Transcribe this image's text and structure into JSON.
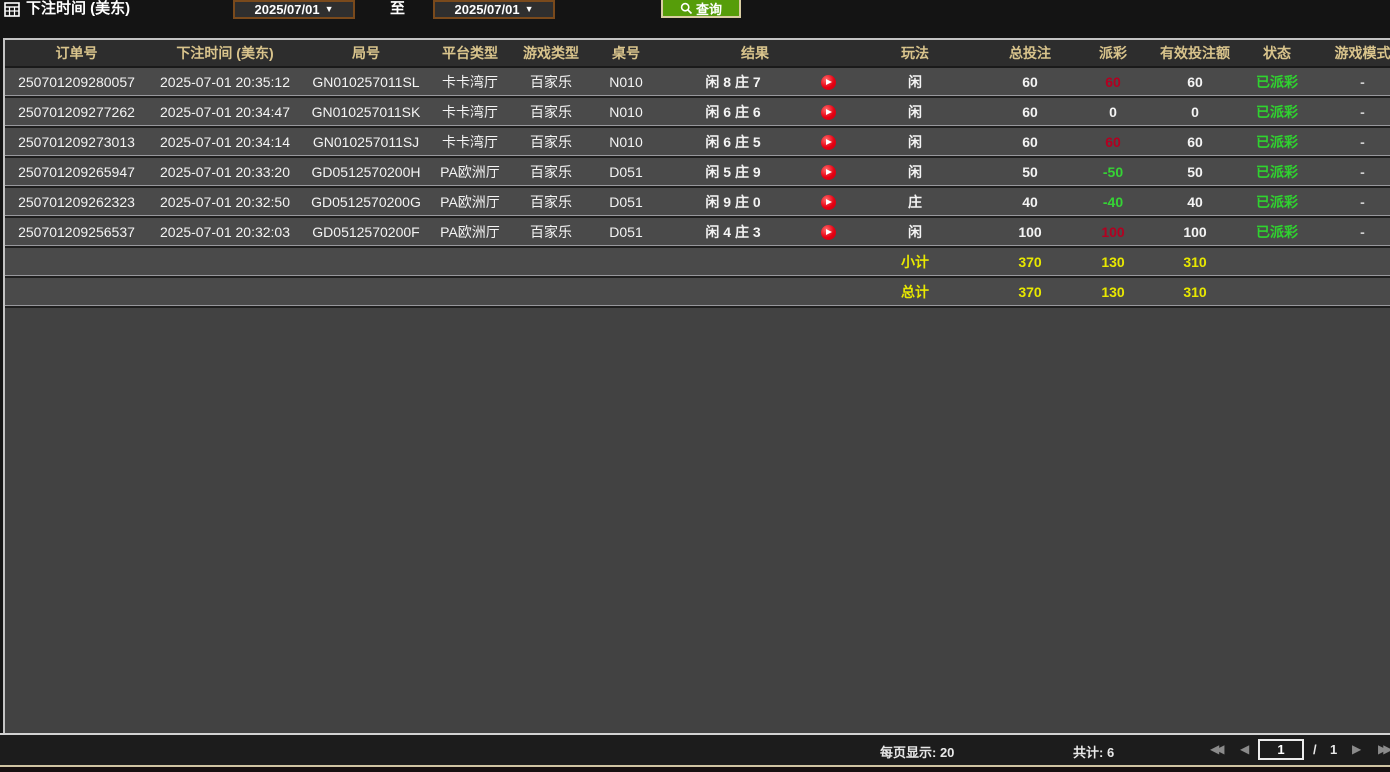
{
  "filters": {
    "title": "下注时间 (美东)",
    "date_from": "2025/07/01",
    "date_to": "2025/07/01",
    "to_label": "至",
    "query_label": "查询"
  },
  "table": {
    "columns": [
      {
        "key": "order_id",
        "label": "订单号"
      },
      {
        "key": "bet_time",
        "label": "下注时间 (美东)"
      },
      {
        "key": "round_id",
        "label": "局号"
      },
      {
        "key": "platform",
        "label": "平台类型"
      },
      {
        "key": "game_type",
        "label": "游戏类型"
      },
      {
        "key": "table_no",
        "label": "桌号"
      },
      {
        "key": "result",
        "label": "结果"
      },
      {
        "key": "replay",
        "label": ""
      },
      {
        "key": "play_method",
        "label": "玩法"
      },
      {
        "key": "total_bet",
        "label": "总投注"
      },
      {
        "key": "payout",
        "label": "派彩"
      },
      {
        "key": "valid_bet",
        "label": "有效投注额"
      },
      {
        "key": "status",
        "label": "状态"
      },
      {
        "key": "game_mode",
        "label": "游戏模式"
      }
    ],
    "rows": [
      {
        "order_id": "250701209280057",
        "bet_time": "2025-07-01 20:35:12",
        "round_id": "GN010257011SL",
        "platform": "卡卡湾厅",
        "game_type": "百家乐",
        "table_no": "N010",
        "result": "闲 8 庄 7",
        "play_method": "闲",
        "total_bet": "60",
        "payout": "60",
        "payout_color": "positive",
        "valid_bet": "60",
        "status": "已派彩",
        "game_mode": "-"
      },
      {
        "order_id": "250701209277262",
        "bet_time": "2025-07-01 20:34:47",
        "round_id": "GN010257011SK",
        "platform": "卡卡湾厅",
        "game_type": "百家乐",
        "table_no": "N010",
        "result": "闲 6 庄 6",
        "play_method": "闲",
        "total_bet": "60",
        "payout": "0",
        "payout_color": "zero",
        "valid_bet": "0",
        "status": "已派彩",
        "game_mode": "-"
      },
      {
        "order_id": "250701209273013",
        "bet_time": "2025-07-01 20:34:14",
        "round_id": "GN010257011SJ",
        "platform": "卡卡湾厅",
        "game_type": "百家乐",
        "table_no": "N010",
        "result": "闲 6 庄 5",
        "play_method": "闲",
        "total_bet": "60",
        "payout": "60",
        "payout_color": "positive",
        "valid_bet": "60",
        "status": "已派彩",
        "game_mode": "-"
      },
      {
        "order_id": "250701209265947",
        "bet_time": "2025-07-01 20:33:20",
        "round_id": "GD0512570200H",
        "platform": "PA欧洲厅",
        "game_type": "百家乐",
        "table_no": "D051",
        "result": "闲 5 庄 9",
        "play_method": "闲",
        "total_bet": "50",
        "payout": "-50",
        "payout_color": "negative",
        "valid_bet": "50",
        "status": "已派彩",
        "game_mode": "-"
      },
      {
        "order_id": "250701209262323",
        "bet_time": "2025-07-01 20:32:50",
        "round_id": "GD0512570200G",
        "platform": "PA欧洲厅",
        "game_type": "百家乐",
        "table_no": "D051",
        "result": "闲 9 庄 0",
        "play_method": "庄",
        "total_bet": "40",
        "payout": "-40",
        "payout_color": "negative",
        "valid_bet": "40",
        "status": "已派彩",
        "game_mode": "-"
      },
      {
        "order_id": "250701209256537",
        "bet_time": "2025-07-01 20:32:03",
        "round_id": "GD0512570200F",
        "platform": "PA欧洲厅",
        "game_type": "百家乐",
        "table_no": "D051",
        "result": "闲 4 庄 3",
        "play_method": "闲",
        "total_bet": "100",
        "payout": "100",
        "payout_color": "positive",
        "valid_bet": "100",
        "status": "已派彩",
        "game_mode": "-"
      }
    ],
    "subtotal": {
      "label": "小计",
      "total_bet": "370",
      "payout": "130",
      "valid_bet": "310"
    },
    "total": {
      "label": "总计",
      "total_bet": "370",
      "payout": "130",
      "valid_bet": "310"
    }
  },
  "footer": {
    "per_page_label": "每页显示: 20",
    "total_count_label": "共计: 6",
    "page_input": "1",
    "page_sep": "/",
    "page_total": "1",
    "icons": {
      "first": "◀◀",
      "prev": "◀",
      "next": "▶",
      "last": "▶▶"
    }
  },
  "icons": {
    "calendar": "calendar-icon",
    "search": "search-icon",
    "dropdown_arrow": "▼",
    "replay_play": "▶"
  },
  "colors": {
    "payout_win_red": "#b30021",
    "payout_loss_green": "#35d435",
    "status_green": "#2fd32f",
    "summary_yellow": "#e8e800",
    "header_gold": "#d9c48c",
    "date_border_brown": "#7a4a1c",
    "query_button_green": "#569d0a",
    "row_bg": "#4a4a4a",
    "header_bg": "#2d2d2d"
  }
}
